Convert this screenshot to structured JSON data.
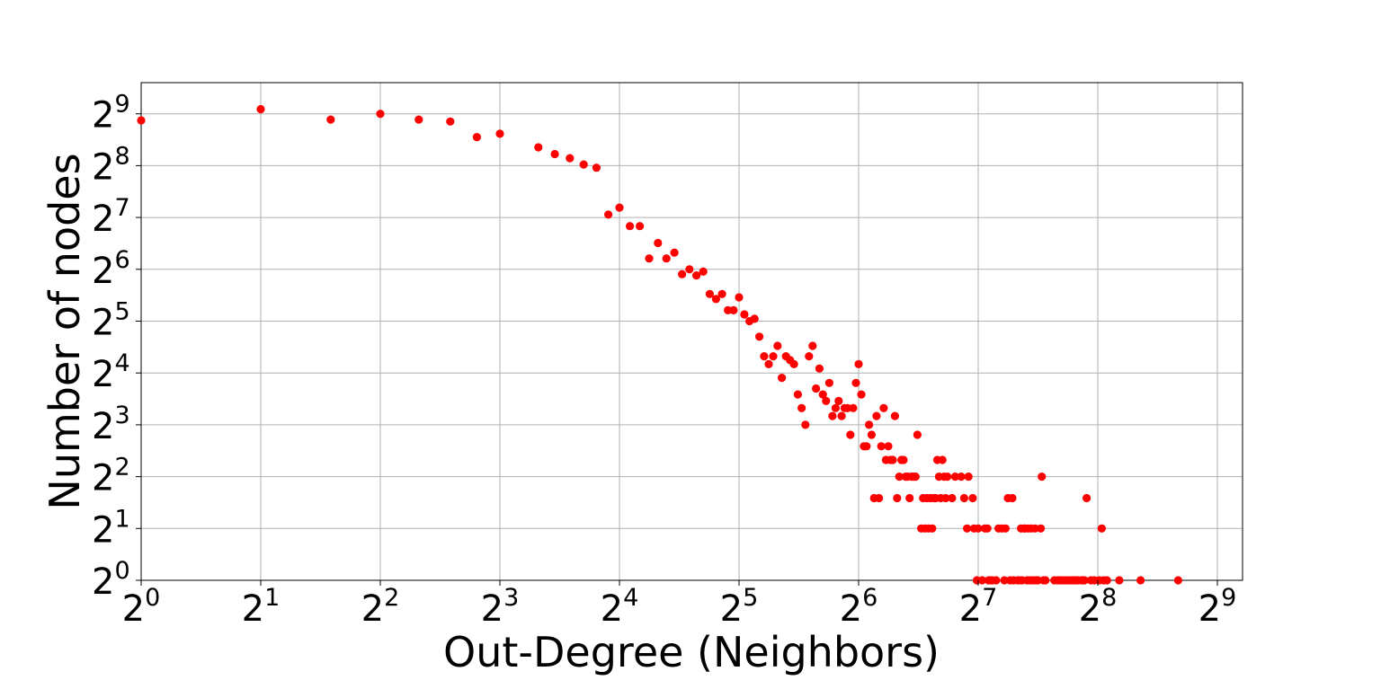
{
  "chart_data": {
    "type": "scatter",
    "title": "",
    "xlabel": "Out-Degree (Neighbors)",
    "ylabel": "Number of nodes",
    "xscale": "log2",
    "yscale": "log2",
    "xlim": [
      1,
      600
    ],
    "ylim": [
      1,
      800
    ],
    "grid": true,
    "x_ticks": [
      {
        "base": "2",
        "exp": "0"
      },
      {
        "base": "2",
        "exp": "1"
      },
      {
        "base": "2",
        "exp": "2"
      },
      {
        "base": "2",
        "exp": "3"
      },
      {
        "base": "2",
        "exp": "4"
      },
      {
        "base": "2",
        "exp": "5"
      },
      {
        "base": "2",
        "exp": "6"
      },
      {
        "base": "2",
        "exp": "7"
      },
      {
        "base": "2",
        "exp": "8"
      },
      {
        "base": "2",
        "exp": "9"
      }
    ],
    "y_ticks": [
      {
        "base": "2",
        "exp": "0"
      },
      {
        "base": "2",
        "exp": "1"
      },
      {
        "base": "2",
        "exp": "2"
      },
      {
        "base": "2",
        "exp": "3"
      },
      {
        "base": "2",
        "exp": "4"
      },
      {
        "base": "2",
        "exp": "5"
      },
      {
        "base": "2",
        "exp": "6"
      },
      {
        "base": "2",
        "exp": "7"
      },
      {
        "base": "2",
        "exp": "8"
      },
      {
        "base": "2",
        "exp": "9"
      }
    ],
    "marker_color": "#ff0000",
    "points": [
      [
        1,
        469
      ],
      [
        2,
        545
      ],
      [
        3,
        474
      ],
      [
        4,
        512
      ],
      [
        5,
        474
      ],
      [
        6,
        462
      ],
      [
        7,
        375
      ],
      [
        8,
        392
      ],
      [
        10,
        327
      ],
      [
        11,
        299
      ],
      [
        12,
        283
      ],
      [
        13,
        260
      ],
      [
        14,
        249
      ],
      [
        15,
        133
      ],
      [
        16,
        146
      ],
      [
        17,
        114
      ],
      [
        18,
        114
      ],
      [
        19,
        74
      ],
      [
        20,
        91
      ],
      [
        21,
        74
      ],
      [
        22,
        80
      ],
      [
        23,
        60
      ],
      [
        24,
        64
      ],
      [
        25,
        59
      ],
      [
        26,
        62
      ],
      [
        27,
        46
      ],
      [
        28,
        43
      ],
      [
        29,
        46
      ],
      [
        30,
        37
      ],
      [
        31,
        37
      ],
      [
        32,
        44
      ],
      [
        33,
        35
      ],
      [
        34,
        32
      ],
      [
        35,
        33
      ],
      [
        36,
        26
      ],
      [
        37,
        20
      ],
      [
        38,
        18
      ],
      [
        39,
        20
      ],
      [
        40,
        23
      ],
      [
        41,
        15
      ],
      [
        42,
        20
      ],
      [
        43,
        19
      ],
      [
        44,
        18
      ],
      [
        45,
        12
      ],
      [
        46,
        10
      ],
      [
        47,
        8
      ],
      [
        48,
        20
      ],
      [
        49,
        23
      ],
      [
        50,
        13
      ],
      [
        51,
        17
      ],
      [
        52,
        12
      ],
      [
        53,
        11
      ],
      [
        54,
        14
      ],
      [
        55,
        9
      ],
      [
        56,
        10
      ],
      [
        57,
        11
      ],
      [
        58,
        9
      ],
      [
        59,
        10
      ],
      [
        60,
        10
      ],
      [
        61,
        7
      ],
      [
        62,
        10
      ],
      [
        63,
        14
      ],
      [
        64,
        18
      ],
      [
        65,
        12
      ],
      [
        66,
        6
      ],
      [
        67,
        6
      ],
      [
        68,
        8
      ],
      [
        69,
        7
      ],
      [
        70,
        3
      ],
      [
        71,
        9
      ],
      [
        72,
        3
      ],
      [
        73,
        6
      ],
      [
        74,
        10
      ],
      [
        75,
        5
      ],
      [
        76,
        6
      ],
      [
        77,
        5
      ],
      [
        78,
        5
      ],
      [
        79,
        9
      ],
      [
        80,
        3
      ],
      [
        81,
        4
      ],
      [
        82,
        5
      ],
      [
        83,
        5
      ],
      [
        84,
        4
      ],
      [
        85,
        4
      ],
      [
        86,
        3
      ],
      [
        87,
        4
      ],
      [
        88,
        4
      ],
      [
        89,
        4
      ],
      [
        90,
        7
      ],
      [
        92,
        2
      ],
      [
        93,
        3
      ],
      [
        94,
        2
      ],
      [
        95,
        3
      ],
      [
        96,
        2
      ],
      [
        97,
        3
      ],
      [
        98,
        2
      ],
      [
        99,
        3
      ],
      [
        100,
        3
      ],
      [
        101,
        5
      ],
      [
        102,
        4
      ],
      [
        103,
        3
      ],
      [
        104,
        5
      ],
      [
        105,
        4
      ],
      [
        106,
        3
      ],
      [
        107,
        4
      ],
      [
        110,
        3
      ],
      [
        112,
        4
      ],
      [
        116,
        4
      ],
      [
        118,
        3
      ],
      [
        120,
        2
      ],
      [
        121,
        4
      ],
      [
        124,
        3
      ],
      [
        125,
        2
      ],
      [
        127,
        1
      ],
      [
        128,
        2
      ],
      [
        131,
        1
      ],
      [
        133,
        2
      ],
      [
        135,
        2
      ],
      [
        136,
        1
      ],
      [
        137,
        1
      ],
      [
        139,
        1
      ],
      [
        142,
        1
      ],
      [
        144,
        2
      ],
      [
        147,
        2
      ],
      [
        149,
        1
      ],
      [
        150,
        2
      ],
      [
        152,
        3
      ],
      [
        154,
        1
      ],
      [
        156,
        3
      ],
      [
        157,
        1
      ],
      [
        161,
        1
      ],
      [
        162,
        1
      ],
      [
        164,
        2
      ],
      [
        165,
        1
      ],
      [
        167,
        2
      ],
      [
        168,
        2
      ],
      [
        170,
        1
      ],
      [
        171,
        2
      ],
      [
        173,
        1
      ],
      [
        174,
        2
      ],
      [
        176,
        1
      ],
      [
        178,
        2
      ],
      [
        179,
        1
      ],
      [
        181,
        1
      ],
      [
        184,
        2
      ],
      [
        185,
        4
      ],
      [
        187,
        1
      ],
      [
        189,
        1
      ],
      [
        199,
        1
      ],
      [
        203,
        1
      ],
      [
        206,
        1
      ],
      [
        209,
        1
      ],
      [
        213,
        1
      ],
      [
        216,
        1
      ],
      [
        220,
        1
      ],
      [
        222,
        1
      ],
      [
        225,
        1
      ],
      [
        228,
        1
      ],
      [
        233,
        1
      ],
      [
        235,
        1
      ],
      [
        237,
        1
      ],
      [
        240,
        3
      ],
      [
        246,
        1
      ],
      [
        251,
        1
      ],
      [
        258,
        1
      ],
      [
        262,
        2
      ],
      [
        265,
        1
      ],
      [
        270,
        1
      ],
      [
        290,
        1
      ],
      [
        328,
        1
      ],
      [
        408,
        1
      ]
    ]
  }
}
